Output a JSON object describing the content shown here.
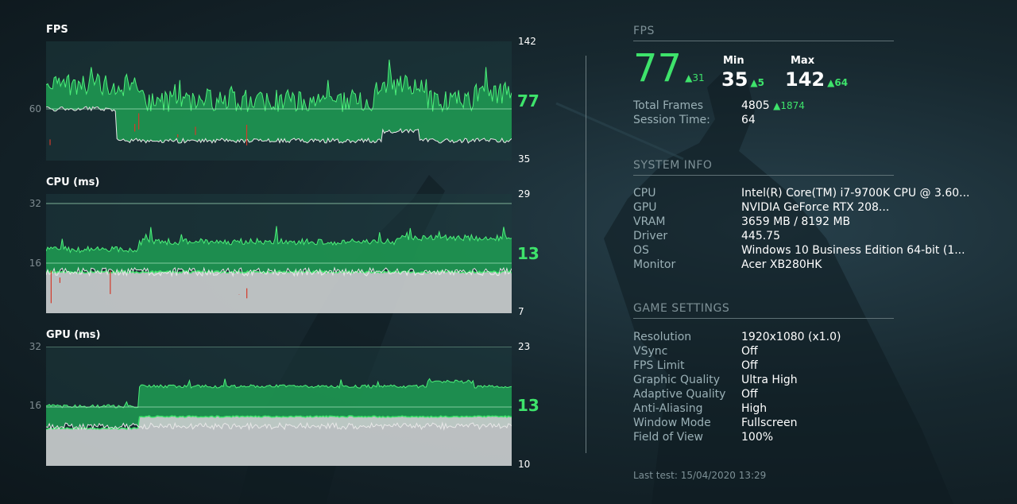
{
  "graphs": {
    "fps": {
      "title": "FPS",
      "max": "142",
      "min": "35",
      "ref": "60",
      "current": "77"
    },
    "cpu": {
      "title": "CPU (ms)",
      "max": "29",
      "min": "7",
      "ref_high": "32",
      "ref_low": "16",
      "current": "13"
    },
    "gpu": {
      "title": "GPU (ms)",
      "max": "23",
      "min": "10",
      "ref_high": "32",
      "ref_low": "16",
      "current": "13"
    }
  },
  "fps_panel": {
    "title": "FPS",
    "current": "77",
    "current_delta": "31",
    "min_label": "Min",
    "min": "35",
    "min_delta": "5",
    "max_label": "Max",
    "max": "142",
    "max_delta": "64",
    "total_frames_label": "Total Frames",
    "total_frames": "4805",
    "total_frames_delta": "1874",
    "session_time_label": "Session Time:",
    "session_time": "64"
  },
  "system_info": {
    "title": "SYSTEM INFO",
    "rows": [
      {
        "label": "CPU",
        "value": "Intel(R) Core(TM) i7-9700K CPU @ 3.60..."
      },
      {
        "label": "GPU",
        "value": "NVIDIA GeForce RTX 208..."
      },
      {
        "label": "VRAM",
        "value": "3659 MB / 8192 MB"
      },
      {
        "label": "Driver",
        "value": "445.75"
      },
      {
        "label": "OS",
        "value": "Windows 10 Business Edition 64-bit (1..."
      },
      {
        "label": "Monitor",
        "value": "Acer XB280HK"
      }
    ]
  },
  "game_settings": {
    "title": "GAME SETTINGS",
    "rows": [
      {
        "label": "Resolution",
        "value": "1920x1080 (x1.0)"
      },
      {
        "label": "VSync",
        "value": "Off"
      },
      {
        "label": "FPS Limit",
        "value": "Off"
      },
      {
        "label": "Graphic Quality",
        "value": "Ultra High"
      },
      {
        "label": "Adaptive Quality",
        "value": "Off"
      },
      {
        "label": "Anti-Aliasing",
        "value": "High"
      },
      {
        "label": "Window Mode",
        "value": "Fullscreen"
      },
      {
        "label": "Field of View",
        "value": "100%"
      }
    ]
  },
  "footer": {
    "last_test": "Last test: 15/04/2020 13:29"
  },
  "colors": {
    "accent": "#3ee36b",
    "fill": "#1f9e53",
    "panel_text": "#9ab0b6",
    "background": "#17282f"
  }
}
